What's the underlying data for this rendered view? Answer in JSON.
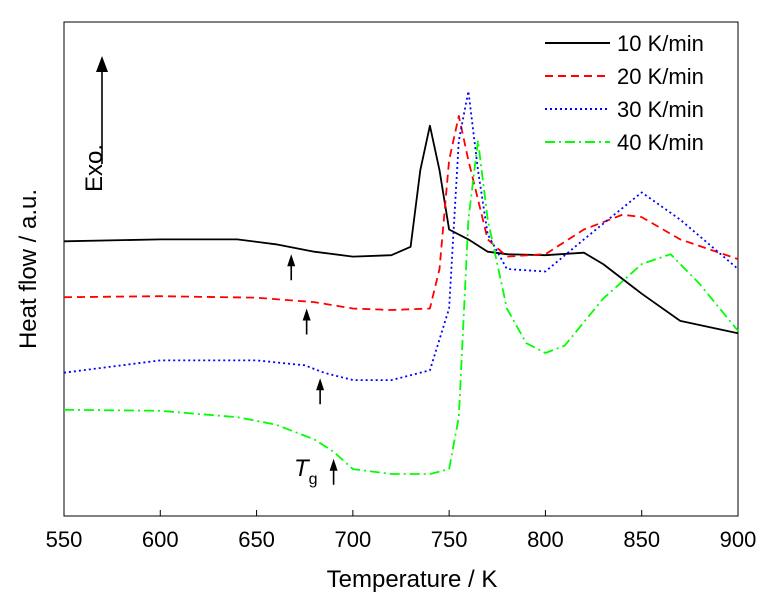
{
  "chart_data": {
    "type": "line",
    "xlabel": "Temperature / K",
    "ylabel": "Heat flow / a.u.",
    "xlim": [
      550,
      900
    ],
    "ylim": [
      0,
      100
    ],
    "x_ticks": [
      550,
      600,
      650,
      700,
      750,
      800,
      850,
      900
    ],
    "grid": false,
    "legend_position": "top-right",
    "annotations": {
      "exo_label": "Exo.",
      "tg_label_main": "T",
      "tg_label_sub": "g"
    },
    "series": [
      {
        "name": "10 K/min",
        "color": "#000000",
        "dash": "solid",
        "x": [
          550,
          600,
          640,
          660,
          680,
          700,
          720,
          730,
          735,
          740,
          745,
          750,
          760,
          770,
          780,
          800,
          820,
          830,
          850,
          870,
          900
        ],
        "y": [
          55.6,
          56.0,
          56.0,
          55.0,
          53.5,
          52.5,
          52.8,
          54.5,
          70.0,
          79.0,
          70.0,
          58.0,
          56.0,
          53.5,
          53.0,
          52.8,
          53.3,
          51.0,
          45.0,
          39.5,
          37.0
        ],
        "tg_x": 668
      },
      {
        "name": "20 K/min",
        "color": "#ff0000",
        "dash": "dashed",
        "x": [
          550,
          600,
          650,
          680,
          700,
          720,
          740,
          745,
          750,
          755,
          760,
          770,
          780,
          800,
          820,
          840,
          850,
          870,
          900
        ],
        "y": [
          44.3,
          44.5,
          44.2,
          43.3,
          42.0,
          41.7,
          42.0,
          50.0,
          72.0,
          81.0,
          72.0,
          56.0,
          52.5,
          53.0,
          58.0,
          61.0,
          60.5,
          56.0,
          52.0
        ],
        "tg_x": 676
      },
      {
        "name": "30 K/min",
        "color": "#0000ff",
        "dash": "dotted",
        "x": [
          550,
          580,
          600,
          650,
          675,
          685,
          700,
          720,
          740,
          750,
          755,
          760,
          765,
          770,
          780,
          800,
          820,
          850,
          870,
          900
        ],
        "y": [
          29.0,
          30.5,
          31.5,
          31.5,
          30.5,
          29.0,
          27.5,
          27.5,
          29.5,
          42.0,
          76.0,
          86.0,
          70.0,
          57.0,
          50.0,
          49.5,
          56.0,
          65.5,
          60.0,
          50.0
        ],
        "tg_x": 683
      },
      {
        "name": "40 K/min",
        "color": "#00ff00",
        "dash": "dashdot",
        "x": [
          550,
          600,
          640,
          660,
          680,
          690,
          700,
          720,
          740,
          750,
          755,
          760,
          765,
          770,
          780,
          790,
          800,
          810,
          830,
          850,
          865,
          880,
          900
        ],
        "y": [
          21.5,
          21.3,
          20.0,
          18.5,
          15.5,
          13.0,
          9.5,
          8.5,
          8.5,
          9.5,
          20.0,
          60.0,
          76.0,
          60.0,
          42.0,
          35.0,
          33.0,
          34.5,
          44.0,
          51.0,
          53.0,
          47.0,
          37.5
        ],
        "tg_x": 690
      }
    ]
  }
}
